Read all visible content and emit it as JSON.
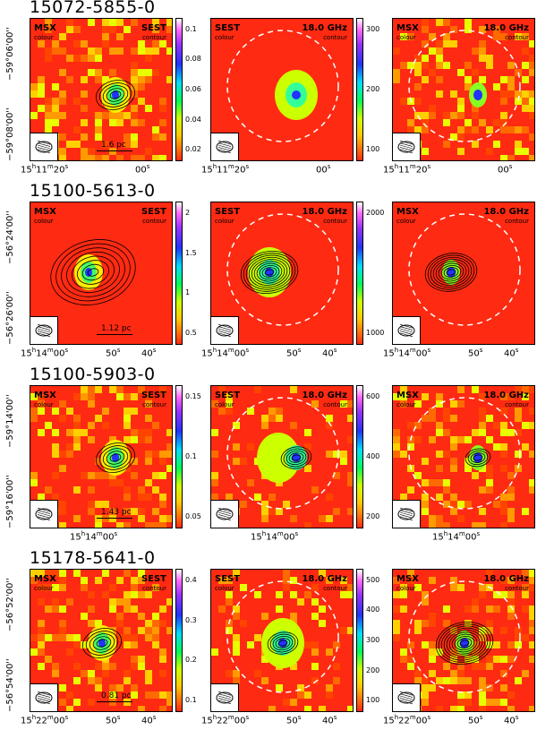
{
  "rows": [
    {
      "title": "15072-5855-0",
      "dec_ticks": [
        "−59°06'00''",
        "−59°08'00''"
      ],
      "ra_ticks": [
        {
          "h": "15",
          "m": "11",
          "s": "20"
        },
        {
          "s": "00"
        }
      ],
      "scale_label": "1.6 pc",
      "panels": [
        {
          "left_label": "MSX",
          "left_sub": "colour",
          "right_label": "SEST",
          "right_sub": "contour"
        },
        {
          "left_label": "SEST",
          "left_sub": "colour",
          "right_label": "18.0 GHz",
          "right_sub": "contour"
        },
        {
          "left_label": "MSX",
          "left_sub": "colour",
          "right_label": "18.0 GHz",
          "right_sub": "contour"
        }
      ],
      "colorbar1_ticks": [
        "0.1",
        "0.08",
        "0.06",
        "0.04",
        "0.02"
      ],
      "colorbar2_ticks": [
        "300",
        "200",
        "100"
      ]
    },
    {
      "title": "15100-5613-0",
      "dec_ticks": [
        "−56°24'00''",
        "−56°26'00''"
      ],
      "ra_ticks": [
        {
          "h": "15",
          "m": "14",
          "s": "00"
        },
        {
          "s": "50"
        },
        {
          "s": "40"
        }
      ],
      "scale_label": "1.12 pc",
      "panels": [
        {
          "left_label": "MSX",
          "left_sub": "colour",
          "right_label": "SEST",
          "right_sub": "contour"
        },
        {
          "left_label": "SEST",
          "left_sub": "colour",
          "right_label": "18.0 GHz",
          "right_sub": "contour"
        },
        {
          "left_label": "MSX",
          "left_sub": "colour",
          "right_label": "18.0 GHz",
          "right_sub": "contour"
        }
      ],
      "colorbar1_ticks": [
        "2",
        "1.5",
        "1",
        "0.5"
      ],
      "colorbar2_ticks": [
        "2000",
        "1000"
      ]
    },
    {
      "title": "15100-5903-0",
      "dec_ticks": [
        "−59°14'00''",
        "−59°16'00''"
      ],
      "ra_ticks": [
        {
          "h": "15",
          "m": "14",
          "s": "00"
        }
      ],
      "scale_label": "1.43 pc",
      "panels": [
        {
          "left_label": "MSX",
          "left_sub": "colour",
          "right_label": "SEST",
          "right_sub": "contour"
        },
        {
          "left_label": "SEST",
          "left_sub": "colour",
          "right_label": "18.0 GHz",
          "right_sub": "contour"
        },
        {
          "left_label": "MSX",
          "left_sub": "colour",
          "right_label": "18.0 GHz",
          "right_sub": "contour"
        }
      ],
      "colorbar1_ticks": [
        "0.15",
        "0.1",
        "0.05"
      ],
      "colorbar2_ticks": [
        "600",
        "400",
        "200"
      ]
    },
    {
      "title": "15178-5641-0",
      "dec_ticks": [
        "−56°52'00''",
        "−56°54'00''"
      ],
      "ra_ticks": [
        {
          "h": "15",
          "m": "22",
          "s": "00"
        },
        {
          "s": "50"
        },
        {
          "s": "40"
        }
      ],
      "scale_label": "0.81 pc",
      "panels": [
        {
          "left_label": "MSX",
          "left_sub": "colour",
          "right_label": "SEST",
          "right_sub": "contour"
        },
        {
          "left_label": "SEST",
          "left_sub": "colour",
          "right_label": "18.0 GHz",
          "right_sub": "contour"
        },
        {
          "left_label": "MSX",
          "left_sub": "colour",
          "right_label": "18.0 GHz",
          "right_sub": "contour"
        }
      ],
      "colorbar1_ticks": [
        "0.4",
        "0.3",
        "0.2",
        "0.1"
      ],
      "colorbar2_ticks": [
        "500",
        "400",
        "300",
        "200",
        "100"
      ]
    }
  ],
  "colors": {
    "background_field": "#ff2a12",
    "contour": "#000000",
    "ring": "#ffffff"
  }
}
